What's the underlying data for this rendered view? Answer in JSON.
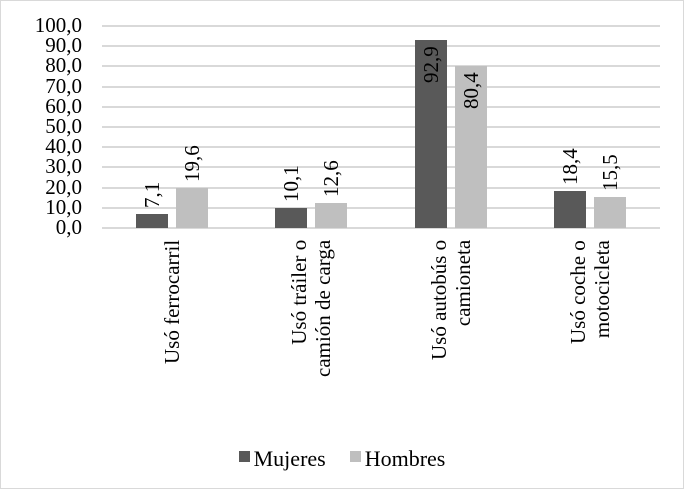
{
  "chart_data": {
    "type": "bar",
    "title": "",
    "xlabel": "",
    "ylabel": "",
    "ylim": [
      0,
      100
    ],
    "y_ticks": [
      "0,0",
      "10,0",
      "20,0",
      "30,0",
      "40,0",
      "50,0",
      "60,0",
      "70,0",
      "80,0",
      "90,0",
      "100,0"
    ],
    "grid": true,
    "legend_position": "bottom",
    "categories": [
      "Usó ferrocarril",
      "Usó tráiler o camión de carga",
      "Usó autobús o camioneta",
      "Usó coche o motocicleta"
    ],
    "category_lines": [
      [
        "Usó ferrocarril"
      ],
      [
        "Usó tráiler o",
        "camión de carga"
      ],
      [
        "Usó autobús o",
        "camioneta"
      ],
      [
        "Usó coche o",
        "motocicleta"
      ]
    ],
    "series": [
      {
        "name": "Mujeres",
        "color": "#595959",
        "values": [
          7.1,
          10.1,
          92.9,
          18.4
        ],
        "labels": [
          "7,1",
          "10,1",
          "92,9",
          "18,4"
        ]
      },
      {
        "name": "Hombres",
        "color": "#bfbfbf",
        "values": [
          19.6,
          12.6,
          80.4,
          15.5
        ],
        "labels": [
          "19,6",
          "12,6",
          "80,4",
          "15,5"
        ]
      }
    ]
  },
  "legend": {
    "mujeres": "Mujeres",
    "hombres": "Hombres"
  }
}
